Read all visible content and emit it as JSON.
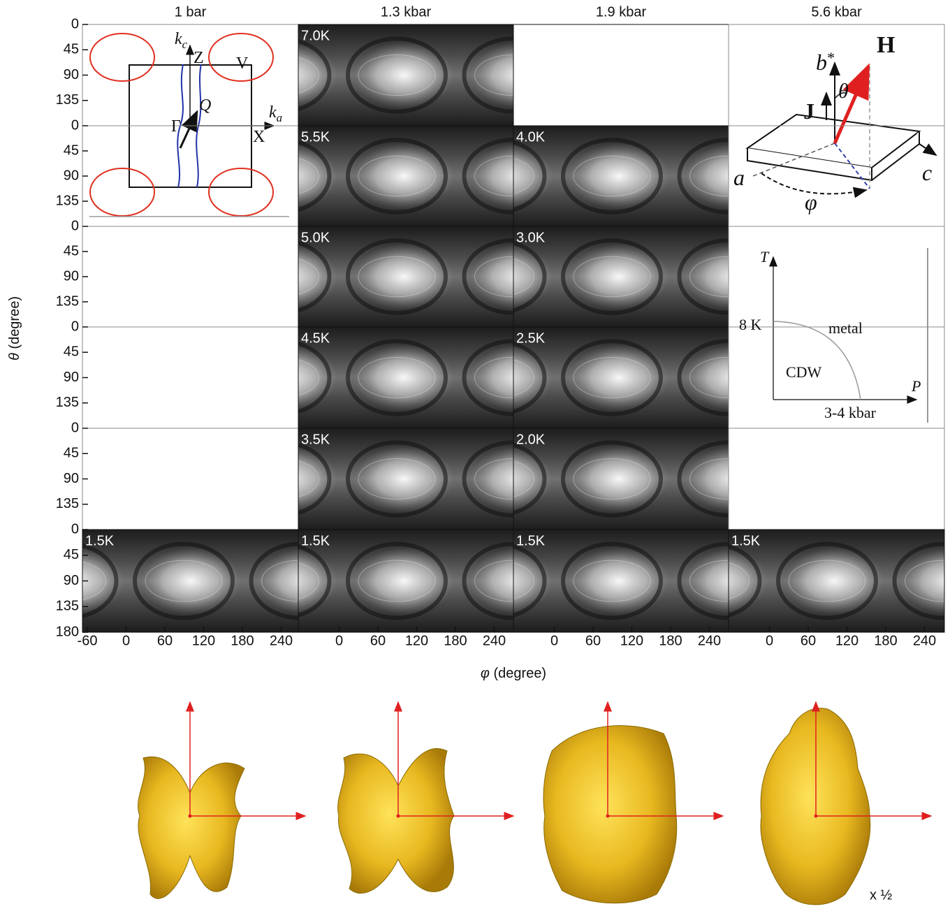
{
  "columns": [
    "1 bar",
    "1.3 kbar",
    "1.9 kbar",
    "5.6 kbar"
  ],
  "y_axis": {
    "symbol": "θ",
    "unit": "(degree)",
    "ticks": [
      0,
      45,
      90,
      135,
      180
    ]
  },
  "x_axis": {
    "symbol": "φ",
    "unit": "(degree)",
    "ticks": [
      -60,
      0,
      60,
      120,
      180,
      240
    ]
  },
  "grid": [
    [
      null,
      "7.0K",
      null,
      null
    ],
    [
      null,
      "5.5K",
      "4.0K",
      null
    ],
    [
      null,
      "5.0K",
      "3.0K",
      null
    ],
    [
      null,
      "4.5K",
      "2.5K",
      null
    ],
    [
      null,
      "3.5K",
      "2.0K",
      null
    ],
    [
      "1.5K",
      "1.5K",
      "1.5K",
      "1.5K"
    ]
  ],
  "fermi_surface": [
    {
      "text": "k",
      "sub": "c"
    },
    {
      "text": "Z"
    },
    {
      "text": "V"
    },
    {
      "text": "Q"
    },
    {
      "text": "k",
      "sub": "a"
    },
    {
      "text": "Γ"
    },
    {
      "text": "X"
    }
  ],
  "geometry": [
    {
      "text": "b",
      "sup": "*"
    },
    {
      "text": "H"
    },
    {
      "text": "θ"
    },
    {
      "text": "J"
    },
    {
      "text": "a"
    },
    {
      "text": "c"
    },
    {
      "text": "φ"
    }
  ],
  "phase_diagram": [
    "T",
    "8 K",
    "metal",
    "CDW",
    "P",
    "3-4 kbar"
  ],
  "scale_note": "x ½"
}
